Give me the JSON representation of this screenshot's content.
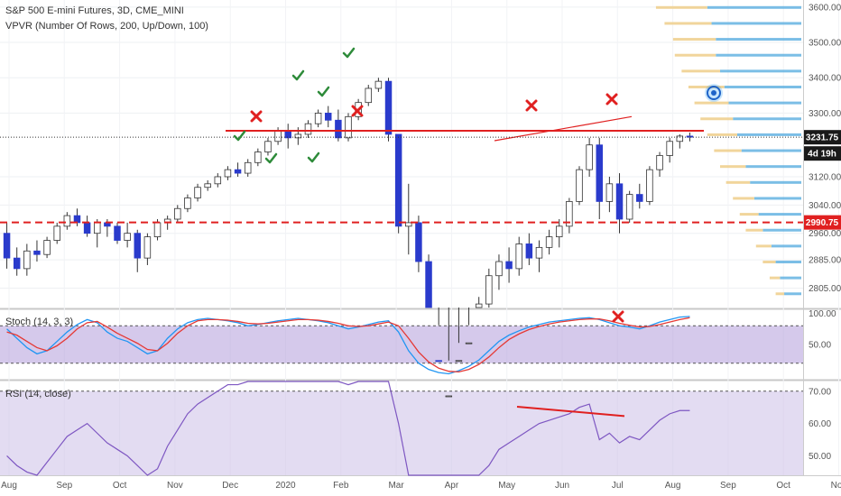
{
  "chart_data": {
    "type": "candlestick",
    "title": "S&P 500 E-mini Futures, 3D, CME_MINI",
    "subtitle": "VPVR (Number Of Rows, 200, Up/Down, 100)",
    "x_axis_labels": [
      "Aug",
      "Sep",
      "Oct",
      "Nov",
      "Dec",
      "2020",
      "Feb",
      "Mar",
      "Apr",
      "May",
      "Jun",
      "Jul",
      "Aug",
      "Sep",
      "Oct",
      "Nov"
    ],
    "price_axis": {
      "range": [
        2750,
        3620
      ],
      "ticks": [
        "3600.00",
        "3500.00",
        "3400.00",
        "3300.00",
        "3120.00",
        "3040.00",
        "2960.00",
        "2885.00",
        "2805.00"
      ],
      "last_price": "3231.75",
      "countdown": "4d 19h",
      "support_price": "2990.75"
    },
    "horizontal_lines": [
      {
        "price": 3250,
        "color": "#e02020",
        "style": "solid"
      },
      {
        "price": 2990.75,
        "color": "#e02020",
        "style": "dashed"
      }
    ],
    "trend_lines": [
      {
        "from": [
          "May",
          3225
        ],
        "to": [
          "Aug",
          3290
        ],
        "color": "#e02020"
      }
    ],
    "colors": {
      "bull": "#ffffff",
      "bear": "#2a3bcc",
      "wick": "#333333",
      "vp_up": "#5aaee0",
      "vp_down": "#f0d090"
    },
    "candles": [
      [
        2960,
        2990,
        2860,
        2890
      ],
      [
        2890,
        2920,
        2840,
        2860
      ],
      [
        2860,
        2930,
        2840,
        2910
      ],
      [
        2910,
        2940,
        2880,
        2900
      ],
      [
        2900,
        2950,
        2890,
        2940
      ],
      [
        2940,
        2990,
        2930,
        2980
      ],
      [
        2980,
        3020,
        2970,
        3010
      ],
      [
        3010,
        3030,
        2980,
        2990
      ],
      [
        2990,
        3010,
        2950,
        2960
      ],
      [
        2960,
        3000,
        2920,
        2990
      ],
      [
        2990,
        3000,
        2950,
        2980
      ],
      [
        2980,
        2990,
        2930,
        2940
      ],
      [
        2940,
        2990,
        2920,
        2960
      ],
      [
        2960,
        2970,
        2850,
        2890
      ],
      [
        2890,
        2960,
        2870,
        2950
      ],
      [
        2950,
        3000,
        2940,
        2990
      ],
      [
        2990,
        3010,
        2970,
        3000
      ],
      [
        3000,
        3040,
        2990,
        3030
      ],
      [
        3030,
        3070,
        3020,
        3060
      ],
      [
        3060,
        3100,
        3050,
        3090
      ],
      [
        3090,
        3110,
        3080,
        3100
      ],
      [
        3100,
        3130,
        3090,
        3120
      ],
      [
        3120,
        3150,
        3110,
        3140
      ],
      [
        3140,
        3160,
        3120,
        3130
      ],
      [
        3130,
        3170,
        3120,
        3160
      ],
      [
        3160,
        3200,
        3150,
        3190
      ],
      [
        3190,
        3230,
        3180,
        3220
      ],
      [
        3220,
        3260,
        3210,
        3250
      ],
      [
        3250,
        3270,
        3200,
        3230
      ],
      [
        3230,
        3260,
        3210,
        3240
      ],
      [
        3240,
        3280,
        3230,
        3270
      ],
      [
        3270,
        3310,
        3260,
        3300
      ],
      [
        3300,
        3320,
        3260,
        3280
      ],
      [
        3280,
        3310,
        3220,
        3230
      ],
      [
        3230,
        3300,
        3220,
        3290
      ],
      [
        3290,
        3340,
        3280,
        3330
      ],
      [
        3330,
        3380,
        3320,
        3370
      ],
      [
        3370,
        3400,
        3360,
        3390
      ],
      [
        3390,
        3400,
        3220,
        3240
      ],
      [
        3240,
        3240,
        2960,
        2980
      ],
      [
        2980,
        3100,
        2900,
        2990
      ],
      [
        2990,
        3010,
        2850,
        2880
      ],
      [
        2880,
        2900,
        2580,
        2600
      ],
      [
        2600,
        2700,
        2300,
        2400
      ],
      [
        2400,
        2600,
        2200,
        2500
      ],
      [
        2500,
        2650,
        2450,
        2600
      ],
      [
        2600,
        2700,
        2550,
        2650
      ],
      [
        2650,
        2780,
        2620,
        2760
      ],
      [
        2760,
        2860,
        2720,
        2840
      ],
      [
        2840,
        2900,
        2800,
        2880
      ],
      [
        2880,
        2920,
        2820,
        2860
      ],
      [
        2860,
        2950,
        2840,
        2930
      ],
      [
        2930,
        2960,
        2870,
        2890
      ],
      [
        2890,
        2940,
        2850,
        2920
      ],
      [
        2920,
        2970,
        2900,
        2950
      ],
      [
        2950,
        3000,
        2920,
        2980
      ],
      [
        2980,
        3060,
        2960,
        3050
      ],
      [
        3050,
        3150,
        3040,
        3140
      ],
      [
        3140,
        3230,
        3120,
        3210
      ],
      [
        3210,
        3230,
        3000,
        3050
      ],
      [
        3050,
        3120,
        3020,
        3100
      ],
      [
        3100,
        3130,
        2960,
        3000
      ],
      [
        3000,
        3080,
        2990,
        3070
      ],
      [
        3070,
        3100,
        3030,
        3050
      ],
      [
        3050,
        3150,
        3040,
        3140
      ],
      [
        3140,
        3190,
        3120,
        3180
      ],
      [
        3180,
        3230,
        3160,
        3220
      ],
      [
        3220,
        3240,
        3200,
        3235
      ],
      [
        3235,
        3245,
        3220,
        3232
      ]
    ],
    "volume_profile": {
      "start_price": 2785,
      "step": 5,
      "up": [
        20,
        25,
        30,
        35,
        45,
        50,
        55,
        60,
        65,
        70,
        75,
        80,
        85,
        90,
        95,
        100,
        100,
        105,
        110,
        115,
        120,
        115,
        110,
        100,
        95,
        90,
        85,
        80,
        75,
        72,
        70,
        68,
        66,
        64,
        62,
        60,
        58,
        56,
        54,
        52,
        50,
        48,
        46,
        44,
        42,
        40,
        38,
        36,
        34,
        32,
        30,
        28,
        26,
        24,
        22,
        20,
        18,
        16,
        14,
        12,
        10,
        8,
        6,
        4,
        3,
        2,
        1
      ],
      "down": [
        10,
        12,
        15,
        18,
        20,
        22,
        25,
        28,
        30,
        32,
        35,
        38,
        40,
        42,
        45,
        48,
        50,
        55,
        60,
        65,
        70,
        60,
        55,
        50,
        45,
        40,
        38,
        36,
        34,
        32,
        30,
        28,
        26,
        24,
        22,
        20,
        19,
        18,
        17,
        16,
        15,
        14,
        13,
        12,
        11,
        10,
        9,
        8,
        7,
        6,
        5,
        5,
        4,
        4,
        3,
        3,
        2,
        2,
        2,
        1,
        1,
        1,
        1,
        1,
        0,
        0,
        0
      ]
    },
    "stoch": {
      "label": "Stoch (14, 3, 3)",
      "ticks": [
        "100.00",
        "50.00"
      ],
      "band": [
        20,
        80
      ],
      "k": [
        75,
        60,
        45,
        35,
        40,
        55,
        70,
        82,
        90,
        85,
        70,
        60,
        55,
        45,
        35,
        40,
        60,
        75,
        85,
        90,
        92,
        90,
        88,
        85,
        80,
        82,
        85,
        88,
        90,
        92,
        90,
        88,
        85,
        80,
        75,
        78,
        82,
        86,
        88,
        70,
        40,
        20,
        10,
        5,
        3,
        8,
        15,
        25,
        40,
        55,
        65,
        72,
        78,
        82,
        86,
        88,
        90,
        92,
        93,
        90,
        85,
        80,
        78,
        75,
        80,
        86,
        90,
        94,
        95
      ],
      "d": [
        70,
        65,
        55,
        45,
        40,
        48,
        60,
        75,
        85,
        87,
        78,
        68,
        60,
        52,
        42,
        40,
        52,
        68,
        80,
        88,
        90,
        90,
        89,
        87,
        84,
        83,
        84,
        86,
        88,
        90,
        90,
        89,
        87,
        84,
        80,
        79,
        80,
        83,
        86,
        80,
        60,
        38,
        22,
        12,
        7,
        6,
        10,
        18,
        30,
        45,
        58,
        67,
        74,
        79,
        83,
        86,
        88,
        90,
        91,
        91,
        88,
        84,
        81,
        78,
        79,
        82,
        86,
        90,
        93
      ],
      "colors": {
        "k": "#2196f3",
        "d": "#e53935",
        "band": "#b39ddb"
      }
    },
    "rsi": {
      "label": "RSI (14, close)",
      "ticks": [
        "70.00",
        "60.00",
        "50.00"
      ],
      "band": [
        30,
        70
      ],
      "values": [
        50,
        47,
        45,
        43,
        48,
        52,
        56,
        58,
        60,
        57,
        54,
        52,
        50,
        47,
        42,
        46,
        53,
        58,
        63,
        66,
        68,
        70,
        72,
        72,
        73,
        74,
        75,
        76,
        78,
        79,
        77,
        76,
        74,
        73,
        72,
        73,
        76,
        79,
        80,
        60,
        42,
        35,
        28,
        20,
        18,
        28,
        36,
        42,
        47,
        52,
        54,
        56,
        58,
        60,
        61,
        62,
        63,
        65,
        66,
        55,
        57,
        54,
        56,
        55,
        58,
        61,
        63,
        64,
        64
      ],
      "divergence_line": {
        "from": 0.67,
        "to": 0.82,
        "color": "#e02020"
      },
      "colors": {
        "line": "#7e57c2",
        "band": "#d1c4e9"
      }
    },
    "annotations": {
      "red_crosses": 5,
      "green_checks": 6,
      "eye_icon": "eye-icon"
    }
  }
}
